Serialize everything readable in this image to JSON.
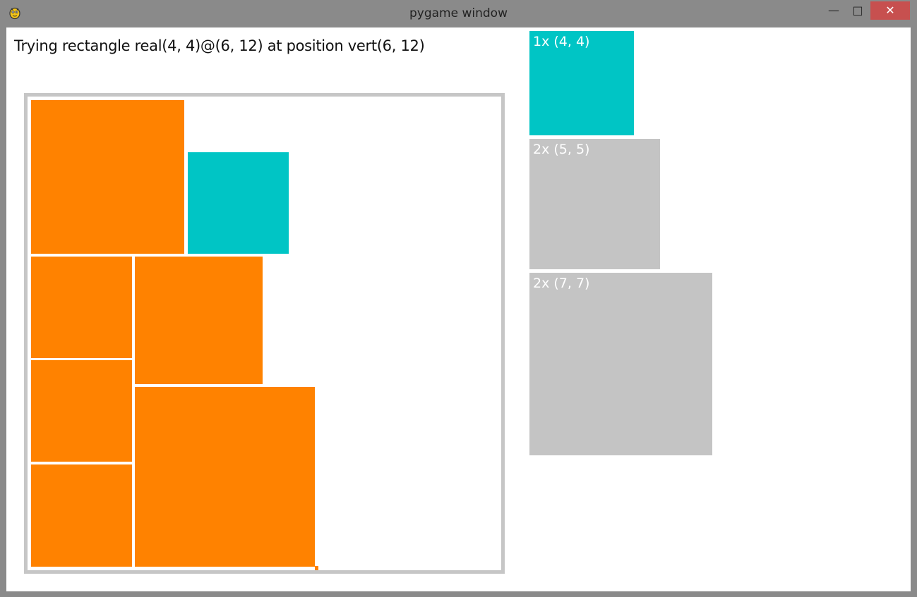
{
  "window": {
    "title": "pygame window",
    "controls": {
      "minimize": "—",
      "maximize": "□",
      "close": "✕"
    },
    "icon": "pygame-snake-icon"
  },
  "status": {
    "message": "Trying rectangle real(4, 4)@(6, 12) at position vert(6, 12)"
  },
  "colors": {
    "placed": "#ff8200",
    "candidate": "#00c5c5",
    "pending": "#c4c4c4",
    "board_border": "#c6c6c6"
  },
  "queue": [
    {
      "label": "1x (4, 4)",
      "state": "candidate"
    },
    {
      "label": "2x (5, 5)",
      "state": "pending"
    },
    {
      "label": "2x (7, 7)",
      "state": "pending"
    }
  ]
}
